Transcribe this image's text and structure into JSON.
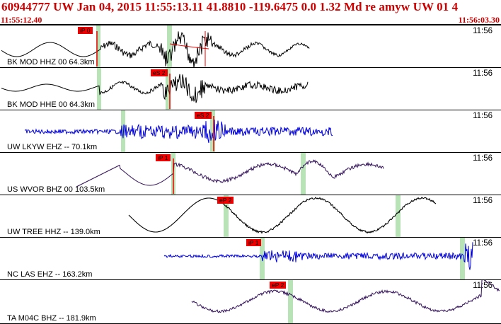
{
  "header": {
    "title": "60944777 UW Jan 04, 2015 11:55:13.11   41.8810 -119.6475  0.0 1.32 Md re amyw UW 01   4",
    "start_time": "11:55:12.40",
    "end_time": "11:56:03.30"
  },
  "colors": {
    "header_text": "#cc0000",
    "pick": "#ee0000",
    "window": "#b7e3b7",
    "black_trace": "#000000",
    "blue_trace": "#0000dd",
    "purple_trace": "#33115a"
  },
  "traces": [
    {
      "label": "BK MOD HHZ 00 64.3km",
      "time": "11:56",
      "pick": "iP 0",
      "color": "black_trace"
    },
    {
      "label": "BK MOD HHE 00 64.3km",
      "time": "11:56",
      "pick": "eS 2",
      "color": "black_trace"
    },
    {
      "label": "UW LKYW EHZ -- 70.1km",
      "time": "11:56",
      "pick": "eS 2",
      "color": "blue_trace"
    },
    {
      "label": "US WVOR BHZ 00 103.5km",
      "time": "11:56",
      "pick": "iP 1",
      "color": "purple_trace"
    },
    {
      "label": "UW TREE HHZ -- 139.0km",
      "time": "11:56",
      "pick": "eP 2",
      "color": "black_trace"
    },
    {
      "label": "NC LAS EHZ -- 163.2km",
      "time": "11:56",
      "pick": "iP 1",
      "color": "blue_trace"
    },
    {
      "label": "TA M04C BHZ -- 181.9km",
      "time": "11:56",
      "pick": "eP 2",
      "color": "purple_trace"
    }
  ]
}
